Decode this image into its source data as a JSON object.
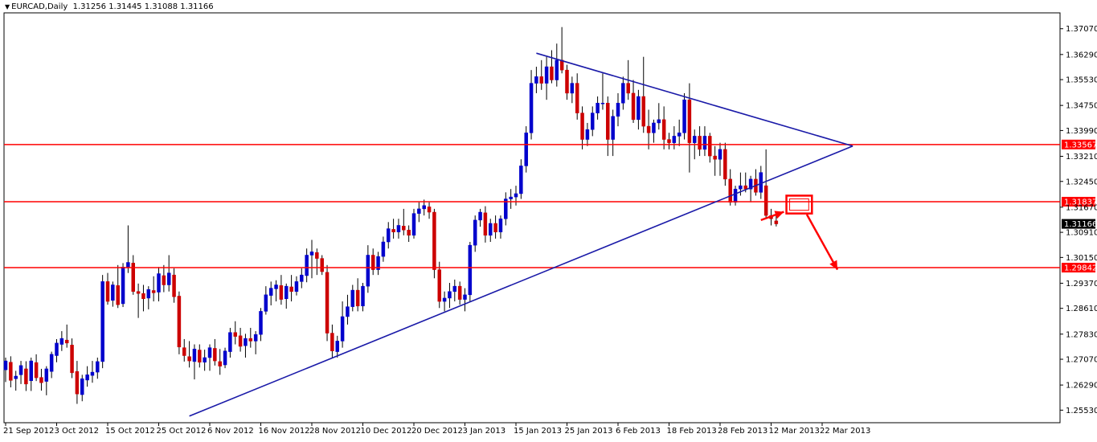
{
  "window": {
    "symbol": "EURCAD",
    "timeframe": "Daily"
  },
  "ohlc_readout": {
    "open": "1.31256",
    "high": "1.31445",
    "low": "1.31088",
    "close": "1.31166"
  },
  "chart_data": {
    "type": "candlestick",
    "title": "",
    "xlabel": "",
    "ylabel": "",
    "ylim": [
      1.2515,
      1.3755
    ],
    "y_ticks": [
      1.3707,
      1.3629,
      1.3553,
      1.3475,
      1.3399,
      1.3321,
      1.3245,
      1.3167,
      1.3091,
      1.3015,
      1.2937,
      1.2861,
      1.2783,
      1.2707,
      1.2629,
      1.2553
    ],
    "x_tick_labels": [
      "21 Sep 2012",
      "3 Oct 2012",
      "15 Oct 2012",
      "25 Oct 2012",
      "6 Nov 2012",
      "16 Nov 2012",
      "28 Nov 2012",
      "10 Dec 2012",
      "20 Dec 2012",
      "3 Jan 2013",
      "15 Jan 2013",
      "25 Jan 2013",
      "6 Feb 2013",
      "18 Feb 2013",
      "28 Feb 2013",
      "12 Mar 2013",
      "22 Mar 2013"
    ],
    "x_tick_bar_index": [
      0,
      10,
      20,
      30,
      40,
      50,
      60,
      70,
      80,
      90,
      100,
      110,
      120,
      130,
      140,
      150,
      160
    ],
    "up_color": "#0000cc",
    "down_color": "#cc0000",
    "price_levels": [
      {
        "price": 1.33567,
        "label": "1.33567",
        "color": "#ff0000"
      },
      {
        "price": 1.31837,
        "label": "1.31837",
        "color": "#ff0000"
      },
      {
        "price": 1.29842,
        "label": "1.29842",
        "color": "#ff0000"
      }
    ],
    "current_price": {
      "price": 1.31166,
      "label": "1.31166"
    },
    "trendlines": [
      {
        "from": [
          104,
          1.3633
        ],
        "to": [
          166,
          1.3352
        ],
        "color": "#1a1aa8"
      },
      {
        "from": [
          36,
          1.2535
        ],
        "to": [
          166,
          1.3352
        ],
        "color": "#1a1aa8"
      }
    ],
    "annotation_box": {
      "x": [
        153,
        158
      ],
      "top": 1.3202,
      "bottom": 1.3148,
      "color": "#ff0000"
    },
    "annotation_arrows": [
      {
        "from": [
          148,
          1.3128
        ],
        "to": [
          152.5,
          1.3153
        ],
        "color": "#ff0000"
      },
      {
        "from": [
          157,
          1.3145
        ],
        "to": [
          163,
          1.2978
        ],
        "color": "#ff0000"
      }
    ],
    "candles": [
      {
        "o": 1.2675,
        "h": 1.2712,
        "l": 1.2638,
        "c": 1.2702
      },
      {
        "o": 1.2698,
        "h": 1.2716,
        "l": 1.2622,
        "c": 1.2643
      },
      {
        "o": 1.2648,
        "h": 1.2672,
        "l": 1.2612,
        "c": 1.2656
      },
      {
        "o": 1.266,
        "h": 1.2702,
        "l": 1.2632,
        "c": 1.2688
      },
      {
        "o": 1.2678,
        "h": 1.2701,
        "l": 1.2611,
        "c": 1.2632
      },
      {
        "o": 1.2642,
        "h": 1.2712,
        "l": 1.2611,
        "c": 1.2702
      },
      {
        "o": 1.2697,
        "h": 1.2722,
        "l": 1.2641,
        "c": 1.2651
      },
      {
        "o": 1.2652,
        "h": 1.2678,
        "l": 1.2612,
        "c": 1.2636
      },
      {
        "o": 1.264,
        "h": 1.2686,
        "l": 1.2598,
        "c": 1.2678
      },
      {
        "o": 1.267,
        "h": 1.273,
        "l": 1.265,
        "c": 1.2722
      },
      {
        "o": 1.2718,
        "h": 1.2768,
        "l": 1.2698,
        "c": 1.2756
      },
      {
        "o": 1.2752,
        "h": 1.2792,
        "l": 1.2732,
        "c": 1.277
      },
      {
        "o": 1.2765,
        "h": 1.2812,
        "l": 1.2742,
        "c": 1.2756
      },
      {
        "o": 1.275,
        "h": 1.277,
        "l": 1.265,
        "c": 1.2666
      },
      {
        "o": 1.267,
        "h": 1.2702,
        "l": 1.2572,
        "c": 1.2602
      },
      {
        "o": 1.26,
        "h": 1.266,
        "l": 1.258,
        "c": 1.2648
      },
      {
        "o": 1.2644,
        "h": 1.2686,
        "l": 1.2624,
        "c": 1.266
      },
      {
        "o": 1.2658,
        "h": 1.2702,
        "l": 1.2636,
        "c": 1.2668
      },
      {
        "o": 1.2668,
        "h": 1.2712,
        "l": 1.2648,
        "c": 1.27
      },
      {
        "o": 1.27,
        "h": 1.2962,
        "l": 1.268,
        "c": 1.2942
      },
      {
        "o": 1.2942,
        "h": 1.2968,
        "l": 1.2872,
        "c": 1.2882
      },
      {
        "o": 1.2885,
        "h": 1.2942,
        "l": 1.2866,
        "c": 1.2932
      },
      {
        "o": 1.293,
        "h": 1.2992,
        "l": 1.2862,
        "c": 1.2872
      },
      {
        "o": 1.2875,
        "h": 1.2998,
        "l": 1.2865,
        "c": 1.2986
      },
      {
        "o": 1.2985,
        "h": 1.3112,
        "l": 1.2968,
        "c": 1.3
      },
      {
        "o": 1.2998,
        "h": 1.3022,
        "l": 1.2902,
        "c": 1.2912
      },
      {
        "o": 1.2912,
        "h": 1.2936,
        "l": 1.2832,
        "c": 1.2906
      },
      {
        "o": 1.2906,
        "h": 1.2932,
        "l": 1.2852,
        "c": 1.289
      },
      {
        "o": 1.2892,
        "h": 1.2928,
        "l": 1.2858,
        "c": 1.2918
      },
      {
        "o": 1.2915,
        "h": 1.2958,
        "l": 1.2882,
        "c": 1.2908
      },
      {
        "o": 1.291,
        "h": 1.2986,
        "l": 1.2882,
        "c": 1.2966
      },
      {
        "o": 1.296,
        "h": 1.2992,
        "l": 1.291,
        "c": 1.2932
      },
      {
        "o": 1.2932,
        "h": 1.3022,
        "l": 1.2912,
        "c": 1.2968
      },
      {
        "o": 1.2962,
        "h": 1.2982,
        "l": 1.2878,
        "c": 1.2896
      },
      {
        "o": 1.2898,
        "h": 1.2912,
        "l": 1.2722,
        "c": 1.2744
      },
      {
        "o": 1.2742,
        "h": 1.2768,
        "l": 1.27,
        "c": 1.2718
      },
      {
        "o": 1.2715,
        "h": 1.2762,
        "l": 1.2682,
        "c": 1.2702
      },
      {
        "o": 1.27,
        "h": 1.2752,
        "l": 1.2646,
        "c": 1.2738
      },
      {
        "o": 1.2735,
        "h": 1.2752,
        "l": 1.2682,
        "c": 1.2698
      },
      {
        "o": 1.2698,
        "h": 1.2736,
        "l": 1.2672,
        "c": 1.2712
      },
      {
        "o": 1.2712,
        "h": 1.2752,
        "l": 1.2672,
        "c": 1.2742
      },
      {
        "o": 1.274,
        "h": 1.2768,
        "l": 1.2688,
        "c": 1.2702
      },
      {
        "o": 1.27,
        "h": 1.2738,
        "l": 1.266,
        "c": 1.2686
      },
      {
        "o": 1.269,
        "h": 1.2742,
        "l": 1.268,
        "c": 1.2732
      },
      {
        "o": 1.273,
        "h": 1.2802,
        "l": 1.2712,
        "c": 1.2788
      },
      {
        "o": 1.2788,
        "h": 1.2822,
        "l": 1.2752,
        "c": 1.2776
      },
      {
        "o": 1.2778,
        "h": 1.2802,
        "l": 1.273,
        "c": 1.2746
      },
      {
        "o": 1.2748,
        "h": 1.2784,
        "l": 1.2712,
        "c": 1.277
      },
      {
        "o": 1.277,
        "h": 1.2802,
        "l": 1.2742,
        "c": 1.2762
      },
      {
        "o": 1.2762,
        "h": 1.2792,
        "l": 1.2722,
        "c": 1.2782
      },
      {
        "o": 1.2782,
        "h": 1.2862,
        "l": 1.2762,
        "c": 1.2852
      },
      {
        "o": 1.2852,
        "h": 1.2928,
        "l": 1.2842,
        "c": 1.2902
      },
      {
        "o": 1.29,
        "h": 1.2942,
        "l": 1.287,
        "c": 1.2922
      },
      {
        "o": 1.292,
        "h": 1.2946,
        "l": 1.2882,
        "c": 1.2932
      },
      {
        "o": 1.293,
        "h": 1.2962,
        "l": 1.2872,
        "c": 1.2888
      },
      {
        "o": 1.289,
        "h": 1.2936,
        "l": 1.286,
        "c": 1.2928
      },
      {
        "o": 1.2926,
        "h": 1.2962,
        "l": 1.2882,
        "c": 1.2912
      },
      {
        "o": 1.2912,
        "h": 1.2958,
        "l": 1.29,
        "c": 1.2942
      },
      {
        "o": 1.2942,
        "h": 1.2982,
        "l": 1.2922,
        "c": 1.2962
      },
      {
        "o": 1.296,
        "h": 1.3042,
        "l": 1.294,
        "c": 1.3022
      },
      {
        "o": 1.3022,
        "h": 1.3068,
        "l": 1.2952,
        "c": 1.3032
      },
      {
        "o": 1.303,
        "h": 1.3042,
        "l": 1.2962,
        "c": 1.3012
      },
      {
        "o": 1.3012,
        "h": 1.3022,
        "l": 1.2962,
        "c": 1.2972
      },
      {
        "o": 1.297,
        "h": 1.2992,
        "l": 1.2762,
        "c": 1.2786
      },
      {
        "o": 1.2786,
        "h": 1.2812,
        "l": 1.2712,
        "c": 1.2732
      },
      {
        "o": 1.273,
        "h": 1.2778,
        "l": 1.2712,
        "c": 1.2762
      },
      {
        "o": 1.2762,
        "h": 1.2882,
        "l": 1.2742,
        "c": 1.2836
      },
      {
        "o": 1.2836,
        "h": 1.2902,
        "l": 1.2812,
        "c": 1.2866
      },
      {
        "o": 1.2866,
        "h": 1.2932,
        "l": 1.2852,
        "c": 1.2916
      },
      {
        "o": 1.2916,
        "h": 1.2952,
        "l": 1.2852,
        "c": 1.2868
      },
      {
        "o": 1.2868,
        "h": 1.2938,
        "l": 1.2852,
        "c": 1.2928
      },
      {
        "o": 1.2928,
        "h": 1.3052,
        "l": 1.2908,
        "c": 1.3022
      },
      {
        "o": 1.3022,
        "h": 1.3042,
        "l": 1.2962,
        "c": 1.2978
      },
      {
        "o": 1.2978,
        "h": 1.3032,
        "l": 1.2962,
        "c": 1.3018
      },
      {
        "o": 1.3018,
        "h": 1.3078,
        "l": 1.3002,
        "c": 1.3062
      },
      {
        "o": 1.3062,
        "h": 1.3122,
        "l": 1.3042,
        "c": 1.3102
      },
      {
        "o": 1.31,
        "h": 1.3132,
        "l": 1.3072,
        "c": 1.3092
      },
      {
        "o": 1.3092,
        "h": 1.3132,
        "l": 1.3072,
        "c": 1.3112
      },
      {
        "o": 1.311,
        "h": 1.3162,
        "l": 1.3082,
        "c": 1.3098
      },
      {
        "o": 1.3098,
        "h": 1.3112,
        "l": 1.3062,
        "c": 1.3082
      },
      {
        "o": 1.3082,
        "h": 1.3162,
        "l": 1.3072,
        "c": 1.3148
      },
      {
        "o": 1.3148,
        "h": 1.3182,
        "l": 1.3122,
        "c": 1.3162
      },
      {
        "o": 1.3162,
        "h": 1.319,
        "l": 1.3142,
        "c": 1.3172
      },
      {
        "o": 1.3168,
        "h": 1.3182,
        "l": 1.3132,
        "c": 1.3152
      },
      {
        "o": 1.3152,
        "h": 1.3162,
        "l": 1.2952,
        "c": 1.2978
      },
      {
        "o": 1.2978,
        "h": 1.3002,
        "l": 1.2862,
        "c": 1.2882
      },
      {
        "o": 1.2882,
        "h": 1.2912,
        "l": 1.2852,
        "c": 1.2892
      },
      {
        "o": 1.2892,
        "h": 1.2938,
        "l": 1.2862,
        "c": 1.2912
      },
      {
        "o": 1.2912,
        "h": 1.2948,
        "l": 1.2882,
        "c": 1.2928
      },
      {
        "o": 1.2928,
        "h": 1.2942,
        "l": 1.2872,
        "c": 1.2888
      },
      {
        "o": 1.2888,
        "h": 1.2922,
        "l": 1.2852,
        "c": 1.2902
      },
      {
        "o": 1.2902,
        "h": 1.3062,
        "l": 1.2882,
        "c": 1.3052
      },
      {
        "o": 1.3052,
        "h": 1.3142,
        "l": 1.3032,
        "c": 1.3128
      },
      {
        "o": 1.3128,
        "h": 1.3162,
        "l": 1.3108,
        "c": 1.3152
      },
      {
        "o": 1.315,
        "h": 1.317,
        "l": 1.306,
        "c": 1.3082
      },
      {
        "o": 1.3082,
        "h": 1.3132,
        "l": 1.3062,
        "c": 1.3118
      },
      {
        "o": 1.3118,
        "h": 1.3142,
        "l": 1.3072,
        "c": 1.3092
      },
      {
        "o": 1.3092,
        "h": 1.3142,
        "l": 1.3072,
        "c": 1.3132
      },
      {
        "o": 1.3132,
        "h": 1.3212,
        "l": 1.3112,
        "c": 1.3192
      },
      {
        "o": 1.3192,
        "h": 1.3222,
        "l": 1.3162,
        "c": 1.3198
      },
      {
        "o": 1.3198,
        "h": 1.3232,
        "l": 1.3172,
        "c": 1.3208
      },
      {
        "o": 1.3208,
        "h": 1.3312,
        "l": 1.3192,
        "c": 1.3292
      },
      {
        "o": 1.3292,
        "h": 1.3412,
        "l": 1.3272,
        "c": 1.3392
      },
      {
        "o": 1.3392,
        "h": 1.3582,
        "l": 1.3372,
        "c": 1.3542
      },
      {
        "o": 1.3542,
        "h": 1.3592,
        "l": 1.3512,
        "c": 1.3562
      },
      {
        "o": 1.3562,
        "h": 1.3612,
        "l": 1.3522,
        "c": 1.3542
      },
      {
        "o": 1.3542,
        "h": 1.3622,
        "l": 1.3492,
        "c": 1.3592
      },
      {
        "o": 1.3592,
        "h": 1.3642,
        "l": 1.3542,
        "c": 1.3552
      },
      {
        "o": 1.3552,
        "h": 1.3662,
        "l": 1.3532,
        "c": 1.3612
      },
      {
        "o": 1.3612,
        "h": 1.3712,
        "l": 1.3572,
        "c": 1.3582
      },
      {
        "o": 1.3582,
        "h": 1.3598,
        "l": 1.3492,
        "c": 1.3512
      },
      {
        "o": 1.3512,
        "h": 1.3562,
        "l": 1.3482,
        "c": 1.3542
      },
      {
        "o": 1.3542,
        "h": 1.3572,
        "l": 1.3432,
        "c": 1.3452
      },
      {
        "o": 1.3452,
        "h": 1.3472,
        "l": 1.3342,
        "c": 1.3372
      },
      {
        "o": 1.3372,
        "h": 1.3422,
        "l": 1.3352,
        "c": 1.3402
      },
      {
        "o": 1.3402,
        "h": 1.3472,
        "l": 1.3382,
        "c": 1.3452
      },
      {
        "o": 1.3452,
        "h": 1.3502,
        "l": 1.3432,
        "c": 1.3482
      },
      {
        "o": 1.3482,
        "h": 1.3572,
        "l": 1.3462,
        "c": 1.3482
      },
      {
        "o": 1.3482,
        "h": 1.3502,
        "l": 1.3322,
        "c": 1.3372
      },
      {
        "o": 1.3372,
        "h": 1.3462,
        "l": 1.3322,
        "c": 1.3442
      },
      {
        "o": 1.3442,
        "h": 1.3512,
        "l": 1.3412,
        "c": 1.3482
      },
      {
        "o": 1.3482,
        "h": 1.3562,
        "l": 1.3462,
        "c": 1.3542
      },
      {
        "o": 1.3542,
        "h": 1.3612,
        "l": 1.3492,
        "c": 1.3512
      },
      {
        "o": 1.3512,
        "h": 1.3552,
        "l": 1.3422,
        "c": 1.3432
      },
      {
        "o": 1.3432,
        "h": 1.3522,
        "l": 1.3402,
        "c": 1.3502
      },
      {
        "o": 1.3502,
        "h": 1.3622,
        "l": 1.3392,
        "c": 1.3412
      },
      {
        "o": 1.3412,
        "h": 1.3462,
        "l": 1.3342,
        "c": 1.3392
      },
      {
        "o": 1.3392,
        "h": 1.3432,
        "l": 1.3362,
        "c": 1.3422
      },
      {
        "o": 1.3422,
        "h": 1.3482,
        "l": 1.3402,
        "c": 1.3432
      },
      {
        "o": 1.3432,
        "h": 1.3472,
        "l": 1.3342,
        "c": 1.3372
      },
      {
        "o": 1.3372,
        "h": 1.3392,
        "l": 1.3342,
        "c": 1.3362
      },
      {
        "o": 1.3362,
        "h": 1.3412,
        "l": 1.3342,
        "c": 1.3382
      },
      {
        "o": 1.3382,
        "h": 1.3432,
        "l": 1.3352,
        "c": 1.3392
      },
      {
        "o": 1.3392,
        "h": 1.3512,
        "l": 1.3372,
        "c": 1.3492
      },
      {
        "o": 1.3492,
        "h": 1.3542,
        "l": 1.3272,
        "c": 1.3362
      },
      {
        "o": 1.3362,
        "h": 1.3402,
        "l": 1.3312,
        "c": 1.3382
      },
      {
        "o": 1.3382,
        "h": 1.3412,
        "l": 1.3322,
        "c": 1.3342
      },
      {
        "o": 1.3342,
        "h": 1.3412,
        "l": 1.3322,
        "c": 1.3382
      },
      {
        "o": 1.3382,
        "h": 1.3392,
        "l": 1.3302,
        "c": 1.3322
      },
      {
        "o": 1.3322,
        "h": 1.3352,
        "l": 1.3262,
        "c": 1.3312
      },
      {
        "o": 1.3312,
        "h": 1.3362,
        "l": 1.3262,
        "c": 1.3342
      },
      {
        "o": 1.3342,
        "h": 1.3362,
        "l": 1.3232,
        "c": 1.3252
      },
      {
        "o": 1.3252,
        "h": 1.3282,
        "l": 1.3172,
        "c": 1.3182
      },
      {
        "o": 1.3182,
        "h": 1.3232,
        "l": 1.3172,
        "c": 1.3222
      },
      {
        "o": 1.3222,
        "h": 1.3272,
        "l": 1.3202,
        "c": 1.3232
      },
      {
        "o": 1.3232,
        "h": 1.3272,
        "l": 1.3212,
        "c": 1.3222
      },
      {
        "o": 1.3222,
        "h": 1.3262,
        "l": 1.3182,
        "c": 1.3252
      },
      {
        "o": 1.3252,
        "h": 1.3282,
        "l": 1.3202,
        "c": 1.3212
      },
      {
        "o": 1.3212,
        "h": 1.3292,
        "l": 1.3192,
        "c": 1.3272
      },
      {
        "o": 1.3232,
        "h": 1.3342,
        "l": 1.3132,
        "c": 1.3142
      },
      {
        "o": 1.3142,
        "h": 1.3162,
        "l": 1.3112,
        "c": 1.3132
      },
      {
        "o": 1.31256,
        "h": 1.31445,
        "l": 1.31088,
        "c": 1.31166
      }
    ]
  }
}
